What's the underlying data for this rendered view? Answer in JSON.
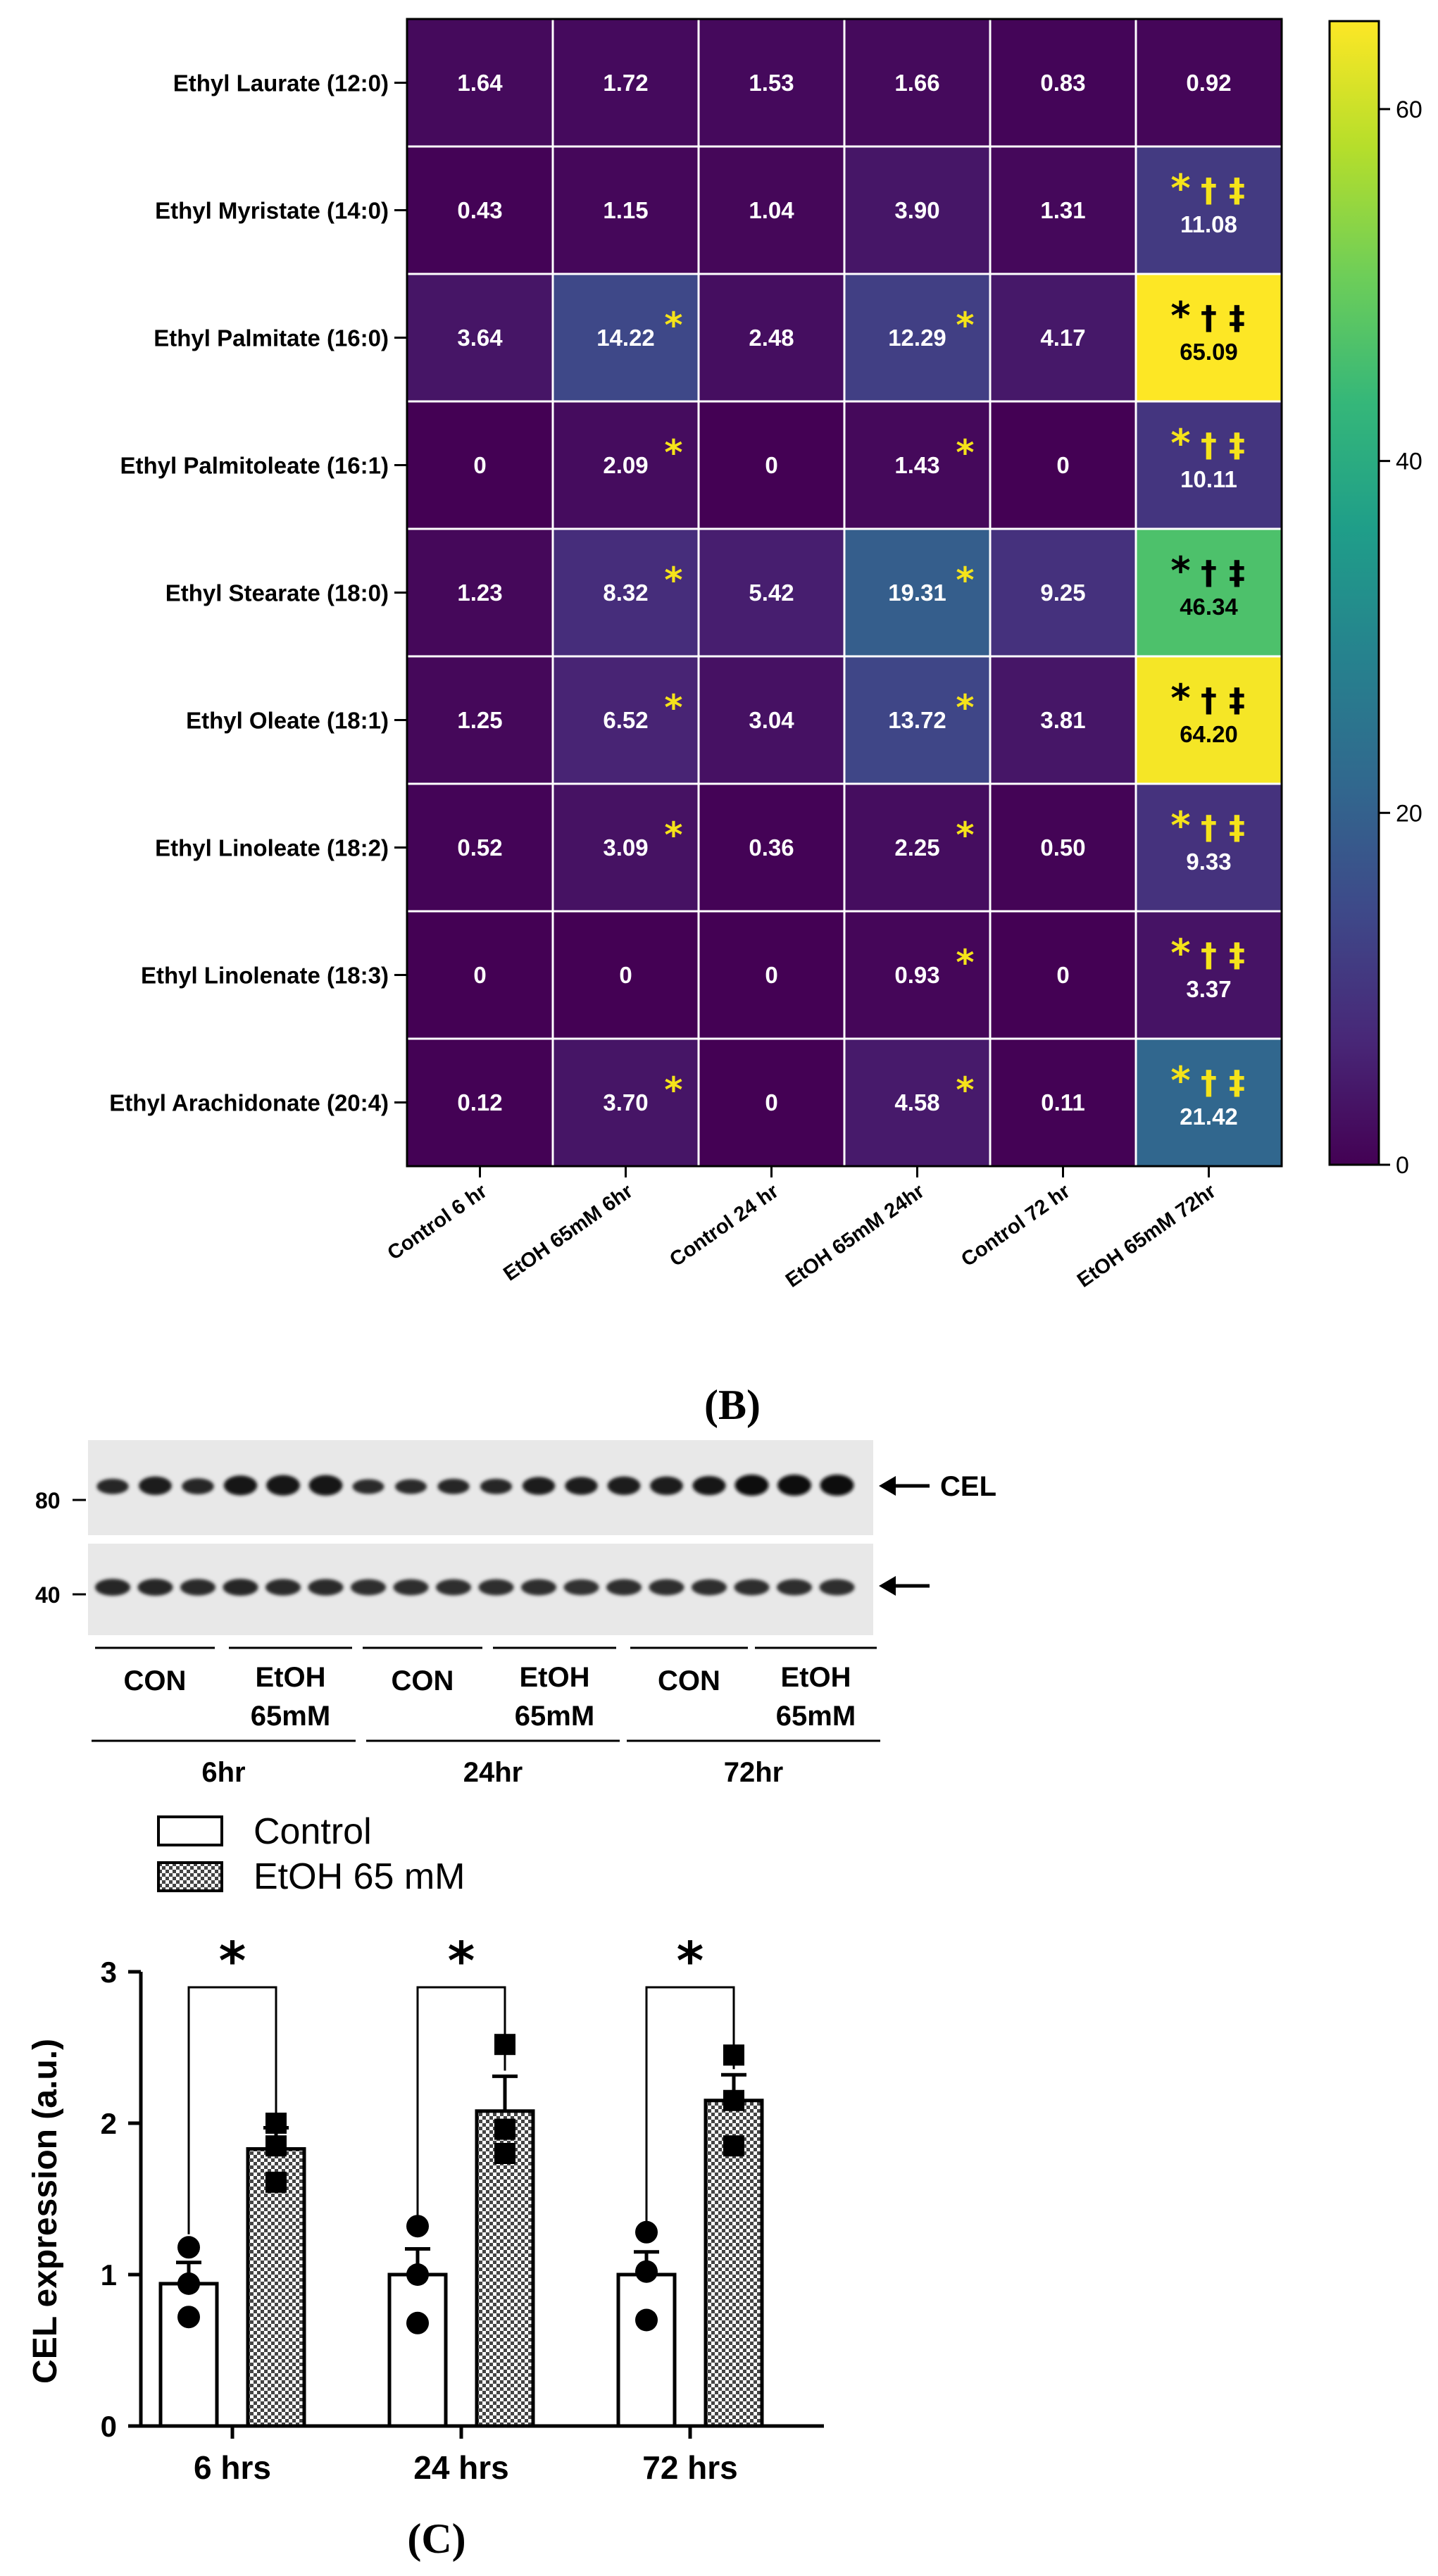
{
  "colors": {
    "viridis": [
      "#440154",
      "#482878",
      "#3e4989",
      "#31688e",
      "#26828e",
      "#1f9e89",
      "#35b779",
      "#6ece58",
      "#b5de2b",
      "#fde725"
    ],
    "yellow_mark": "#f5e31a",
    "black": "#000000"
  },
  "chart_data": [
    {
      "type": "heatmap",
      "rows": [
        "Ethyl Laurate (12:0)",
        "Ethyl Myristate (14:0)",
        "Ethyl Palmitate (16:0)",
        "Ethyl Palmitoleate (16:1)",
        "Ethyl Stearate (18:0)",
        "Ethyl Oleate (18:1)",
        "Ethyl Linoleate (18:2)",
        "Ethyl Linolenate (18:3)",
        "Ethyl Arachidonate (20:4)"
      ],
      "columns": [
        "Control 6 hr",
        "EtOH 65mM 6hr",
        "Control 24 hr",
        "EtOH 65mM 24hr",
        "Control 72 hr",
        "EtOH 65mM 72hr"
      ],
      "values": [
        [
          1.64,
          1.72,
          1.53,
          1.66,
          0.83,
          0.92
        ],
        [
          0.43,
          1.15,
          1.04,
          3.9,
          1.31,
          11.08
        ],
        [
          3.64,
          14.22,
          2.48,
          12.29,
          4.17,
          65.09
        ],
        [
          0,
          2.09,
          0,
          1.43,
          0,
          10.11
        ],
        [
          1.23,
          8.32,
          5.42,
          19.31,
          9.25,
          46.34
        ],
        [
          1.25,
          6.52,
          3.04,
          13.72,
          3.81,
          64.2
        ],
        [
          0.52,
          3.09,
          0.36,
          2.25,
          0.5,
          9.33
        ],
        [
          0,
          0,
          0,
          0.93,
          0,
          3.37
        ],
        [
          0.12,
          3.7,
          0,
          4.58,
          0.11,
          21.42
        ]
      ],
      "labels": [
        [
          "1.64",
          "1.72",
          "1.53",
          "1.66",
          "0.83",
          "0.92"
        ],
        [
          "0.43",
          "1.15",
          "1.04",
          "3.90",
          "1.31",
          "11.08"
        ],
        [
          "3.64",
          "14.22",
          "2.48",
          "12.29",
          "4.17",
          "65.09"
        ],
        [
          "0",
          "2.09",
          "0",
          "1.43",
          "0",
          "10.11"
        ],
        [
          "1.23",
          "8.32",
          "5.42",
          "19.31",
          "9.25",
          "46.34"
        ],
        [
          "1.25",
          "6.52",
          "3.04",
          "13.72",
          "3.81",
          "64.20"
        ],
        [
          "0.52",
          "3.09",
          "0.36",
          "2.25",
          "0.50",
          "9.33"
        ],
        [
          "0",
          "0",
          "0",
          "0.93",
          "0",
          "3.37"
        ],
        [
          "0.12",
          "3.70",
          "0",
          "4.58",
          "0.11",
          "21.42"
        ]
      ],
      "single_marks": [
        {
          "row": 2,
          "col": 1,
          "mark": "*"
        },
        {
          "row": 2,
          "col": 3,
          "mark": "*"
        },
        {
          "row": 3,
          "col": 1,
          "mark": "*"
        },
        {
          "row": 3,
          "col": 3,
          "mark": "*"
        },
        {
          "row": 4,
          "col": 1,
          "mark": "*"
        },
        {
          "row": 4,
          "col": 3,
          "mark": "*"
        },
        {
          "row": 5,
          "col": 1,
          "mark": "*"
        },
        {
          "row": 5,
          "col": 3,
          "mark": "*"
        },
        {
          "row": 6,
          "col": 1,
          "mark": "*"
        },
        {
          "row": 6,
          "col": 3,
          "mark": "*"
        },
        {
          "row": 7,
          "col": 3,
          "mark": "*"
        },
        {
          "row": 8,
          "col": 1,
          "mark": "*"
        },
        {
          "row": 8,
          "col": 3,
          "mark": "*"
        }
      ],
      "triple_marks": [
        {
          "row": 1,
          "col": 5,
          "marks": "*†‡",
          "tone": "light"
        },
        {
          "row": 2,
          "col": 5,
          "marks": "*†‡",
          "tone": "dark"
        },
        {
          "row": 3,
          "col": 5,
          "marks": "*†‡",
          "tone": "light"
        },
        {
          "row": 4,
          "col": 5,
          "marks": "*†‡",
          "tone": "dark"
        },
        {
          "row": 5,
          "col": 5,
          "marks": "*†‡",
          "tone": "dark"
        },
        {
          "row": 6,
          "col": 5,
          "marks": "*†‡",
          "tone": "light"
        },
        {
          "row": 7,
          "col": 5,
          "marks": "*†‡",
          "tone": "light"
        },
        {
          "row": 8,
          "col": 5,
          "marks": "*†‡",
          "tone": "light"
        }
      ],
      "colorbar": {
        "min": 0,
        "max": 65,
        "ticks": [
          "0",
          "20",
          "40",
          "60"
        ],
        "tick_values": [
          0,
          20,
          40,
          60
        ]
      }
    },
    {
      "type": "bar",
      "title": "",
      "ylabel": "CEL expression (a.u.)",
      "categories": [
        "6 hrs",
        "24 hrs",
        "72 hrs"
      ],
      "ylim": [
        0,
        3
      ],
      "yticks": [
        "0",
        "1",
        "2",
        "3"
      ],
      "series": [
        {
          "name": "Control",
          "values": [
            0.94,
            1.0,
            1.0
          ],
          "errors": [
            0.14,
            0.17,
            0.15
          ],
          "points": [
            [
              1.18,
              0.94,
              0.72
            ],
            [
              1.32,
              1.0,
              0.68
            ],
            [
              1.28,
              1.02,
              0.7
            ]
          ]
        },
        {
          "name": "EtOH 65 mM",
          "values": [
            1.83,
            2.08,
            2.15
          ],
          "errors": [
            0.14,
            0.23,
            0.17
          ],
          "points": [
            [
              2.0,
              1.85,
              1.61
            ],
            [
              2.52,
              1.96,
              1.8
            ],
            [
              2.45,
              2.15,
              1.85
            ]
          ]
        }
      ],
      "significance": [
        "*",
        "*",
        "*"
      ]
    }
  ],
  "panels": {
    "b_label": "(B)",
    "c_label": "(C)"
  },
  "blot": {
    "protein_label": "CEL",
    "mw_top": "80",
    "mw_bottom": "40",
    "groups": [
      {
        "line1": "CON",
        "line2": ""
      },
      {
        "line1": "EtOH",
        "line2": "65mM"
      },
      {
        "line1": "CON",
        "line2": ""
      },
      {
        "line1": "EtOH",
        "line2": "65mM"
      },
      {
        "line1": "CON",
        "line2": ""
      },
      {
        "line1": "EtOH",
        "line2": "65mM"
      }
    ],
    "times": [
      "6hr",
      "24hr",
      "72hr"
    ],
    "cel_band_intensity": [
      0.55,
      0.8,
      0.6,
      0.9,
      0.95,
      0.95,
      0.5,
      0.5,
      0.55,
      0.55,
      0.75,
      0.75,
      0.8,
      0.8,
      0.85,
      1.0,
      1.0,
      1.0
    ],
    "ref_band_intensity": [
      0.8,
      0.8,
      0.75,
      0.8,
      0.75,
      0.75,
      0.7,
      0.7,
      0.7,
      0.7,
      0.7,
      0.65,
      0.7,
      0.7,
      0.7,
      0.7,
      0.7,
      0.7
    ]
  },
  "legend": {
    "control": "Control",
    "etoh": "EtOH 65 mM"
  }
}
